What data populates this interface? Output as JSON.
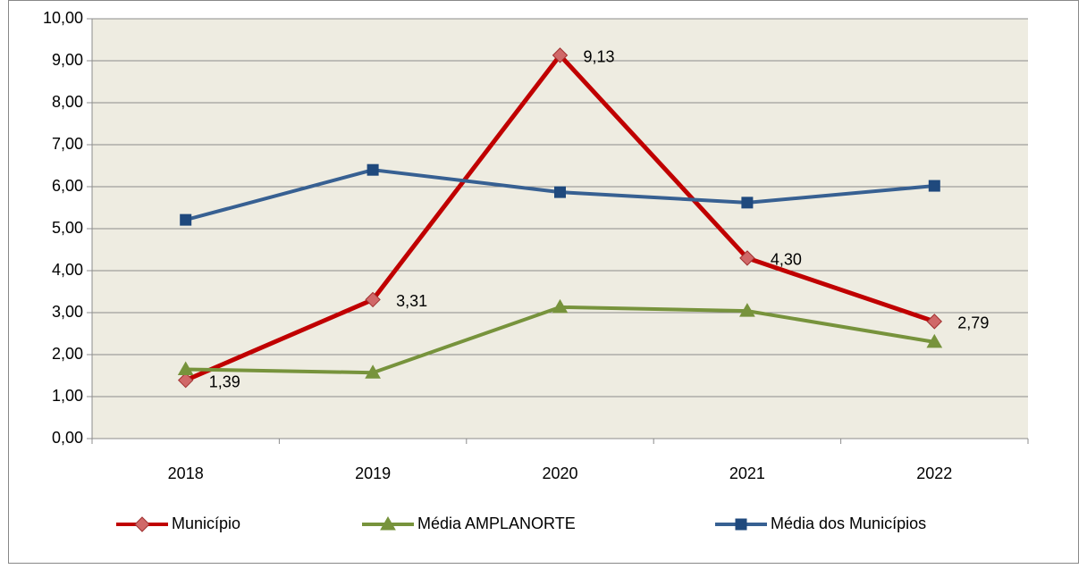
{
  "chart_data": {
    "type": "line",
    "categories": [
      "2018",
      "2019",
      "2020",
      "2021",
      "2022"
    ],
    "series": [
      {
        "name": "Município",
        "color": "#c00000",
        "marker_color": "#d06868",
        "marker": "diamond",
        "values": [
          1.39,
          3.31,
          9.13,
          4.3,
          2.79
        ],
        "value_labels": [
          "1,39",
          "3,31",
          "9,13",
          "4,30",
          "2,79"
        ]
      },
      {
        "name": "Média AMPLANORTE",
        "color": "#77933c",
        "marker_color": "#77933c",
        "marker": "triangle",
        "values": [
          1.65,
          1.57,
          3.13,
          3.04,
          2.3
        ]
      },
      {
        "name": "Média dos Municípios",
        "color": "#376092",
        "marker_color": "#1f497d",
        "marker": "square",
        "values": [
          5.21,
          6.4,
          5.87,
          5.62,
          6.02
        ]
      }
    ],
    "ylim": [
      0,
      10
    ],
    "yticks": [
      {
        "value": 0,
        "label": "0,00"
      },
      {
        "value": 1,
        "label": "1,00"
      },
      {
        "value": 2,
        "label": "2,00"
      },
      {
        "value": 3,
        "label": "3,00"
      },
      {
        "value": 4,
        "label": "4,00"
      },
      {
        "value": 5,
        "label": "5,00"
      },
      {
        "value": 6,
        "label": "6,00"
      },
      {
        "value": 7,
        "label": "7,00"
      },
      {
        "value": 8,
        "label": "8,00"
      },
      {
        "value": 9,
        "label": "9,00"
      },
      {
        "value": 10,
        "label": "10,00"
      }
    ],
    "grid": true,
    "plot_background": "#eeece1",
    "legend": "bottom"
  }
}
